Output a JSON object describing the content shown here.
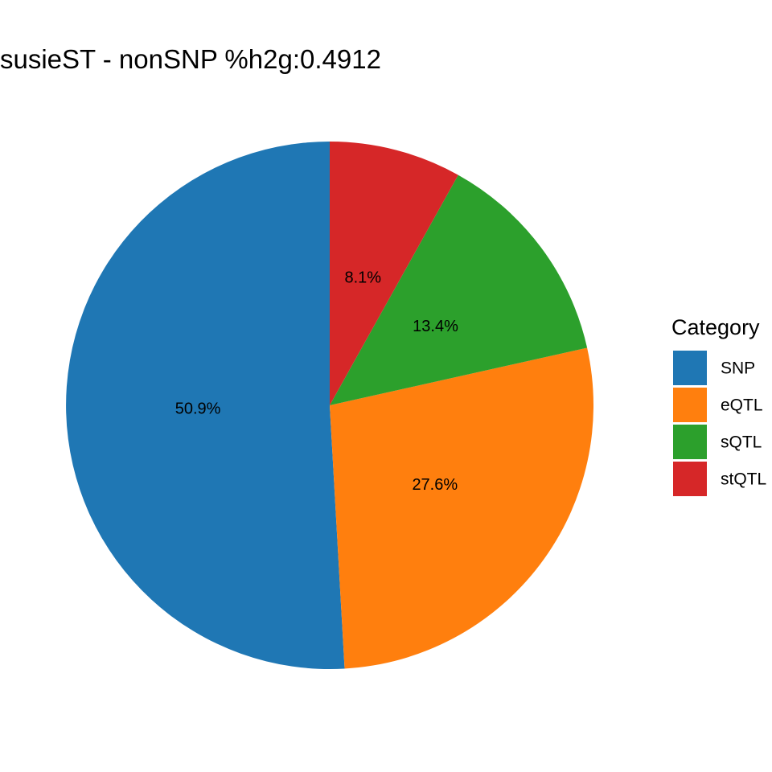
{
  "chart_data": {
    "type": "pie",
    "title": "susieST - nonSNP %h2g:0.4912",
    "start_angle": "12 o'clock",
    "direction": "counter-clockwise",
    "slices": [
      {
        "category": "SNP",
        "value": 50.9,
        "label": "50.9%",
        "color": "#1F77B4"
      },
      {
        "category": "eQTL",
        "value": 27.6,
        "label": "27.6%",
        "color": "#FF7F0E"
      },
      {
        "category": "sQTL",
        "value": 13.4,
        "label": "13.4%",
        "color": "#2CA02C"
      },
      {
        "category": "stQTL",
        "value": 8.1,
        "label": "8.1%",
        "color": "#D62728"
      }
    ],
    "legend": {
      "title": "Category",
      "placement": "right",
      "entries": [
        "SNP",
        "eQTL",
        "sQTL",
        "stQTL"
      ]
    }
  }
}
